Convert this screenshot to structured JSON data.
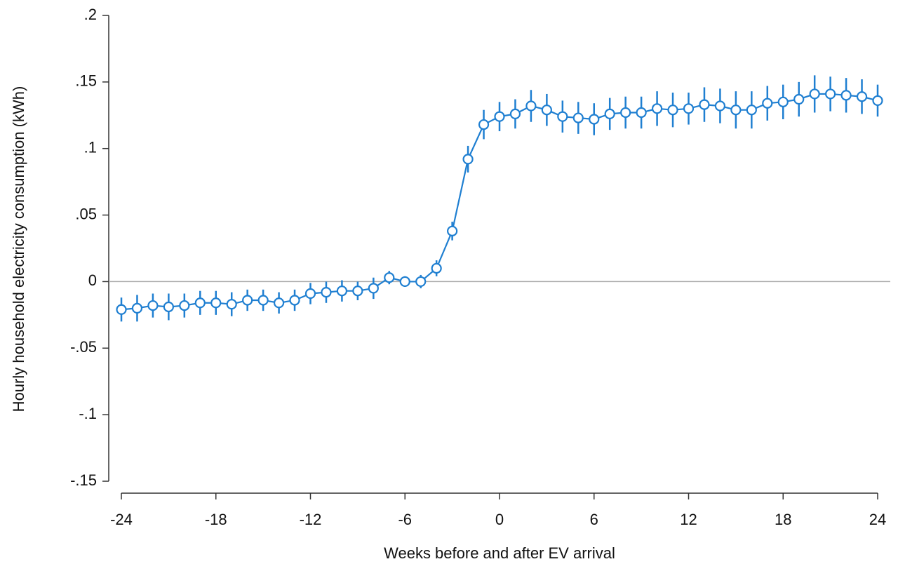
{
  "chart_data": {
    "type": "line",
    "xlabel": "Weeks before and after EV arrival",
    "ylabel": "Hourly household electricity consumption (kWh)",
    "x": [
      -24,
      -23,
      -22,
      -21,
      -20,
      -19,
      -18,
      -17,
      -16,
      -15,
      -14,
      -13,
      -12,
      -11,
      -10,
      -9,
      -8,
      -7,
      -6,
      -5,
      -4,
      -3,
      -2,
      -1,
      0,
      1,
      2,
      3,
      4,
      5,
      6,
      7,
      8,
      9,
      10,
      11,
      12,
      13,
      14,
      15,
      16,
      17,
      18,
      19,
      20,
      21,
      22,
      23,
      24
    ],
    "series": [
      {
        "color": "#1f7fd1",
        "values": [
          -0.021,
          -0.02,
          -0.018,
          -0.019,
          -0.018,
          -0.016,
          -0.016,
          -0.017,
          -0.014,
          -0.014,
          -0.016,
          -0.014,
          -0.009,
          -0.008,
          -0.007,
          -0.007,
          -0.005,
          0.003,
          0.0,
          0.0,
          0.01,
          0.038,
          0.092,
          0.118,
          0.124,
          0.126,
          0.132,
          0.129,
          0.124,
          0.123,
          0.122,
          0.126,
          0.127,
          0.127,
          0.13,
          0.129,
          0.13,
          0.133,
          0.132,
          0.129,
          0.129,
          0.134,
          0.135,
          0.137,
          0.141,
          0.141,
          0.14,
          0.139,
          0.136
        ],
        "errors": [
          0.009,
          0.01,
          0.009,
          0.01,
          0.009,
          0.009,
          0.009,
          0.009,
          0.008,
          0.008,
          0.008,
          0.008,
          0.008,
          0.008,
          0.008,
          0.007,
          0.008,
          0.005,
          0.004,
          0.005,
          0.006,
          0.007,
          0.01,
          0.011,
          0.011,
          0.011,
          0.012,
          0.012,
          0.012,
          0.012,
          0.012,
          0.012,
          0.012,
          0.012,
          0.013,
          0.013,
          0.012,
          0.013,
          0.013,
          0.014,
          0.014,
          0.013,
          0.013,
          0.013,
          0.014,
          0.013,
          0.013,
          0.013,
          0.012
        ]
      }
    ],
    "reference_line": 0,
    "xlim": [
      -24,
      24
    ],
    "xticks": [
      -24,
      -18,
      -12,
      -6,
      0,
      6,
      12,
      18,
      24
    ],
    "ylim": [
      -0.15,
      0.2
    ],
    "yticks": [
      {
        "value": -0.15,
        "label": "-.15"
      },
      {
        "value": -0.1,
        "label": "-.1"
      },
      {
        "value": -0.05,
        "label": "-.05"
      },
      0,
      {
        "value": 0.05,
        "label": ".05"
      },
      {
        "value": 0.1,
        "label": ".1"
      },
      {
        "value": 0.15,
        "label": ".15"
      },
      {
        "value": 0.2,
        "label": ".2"
      }
    ]
  }
}
